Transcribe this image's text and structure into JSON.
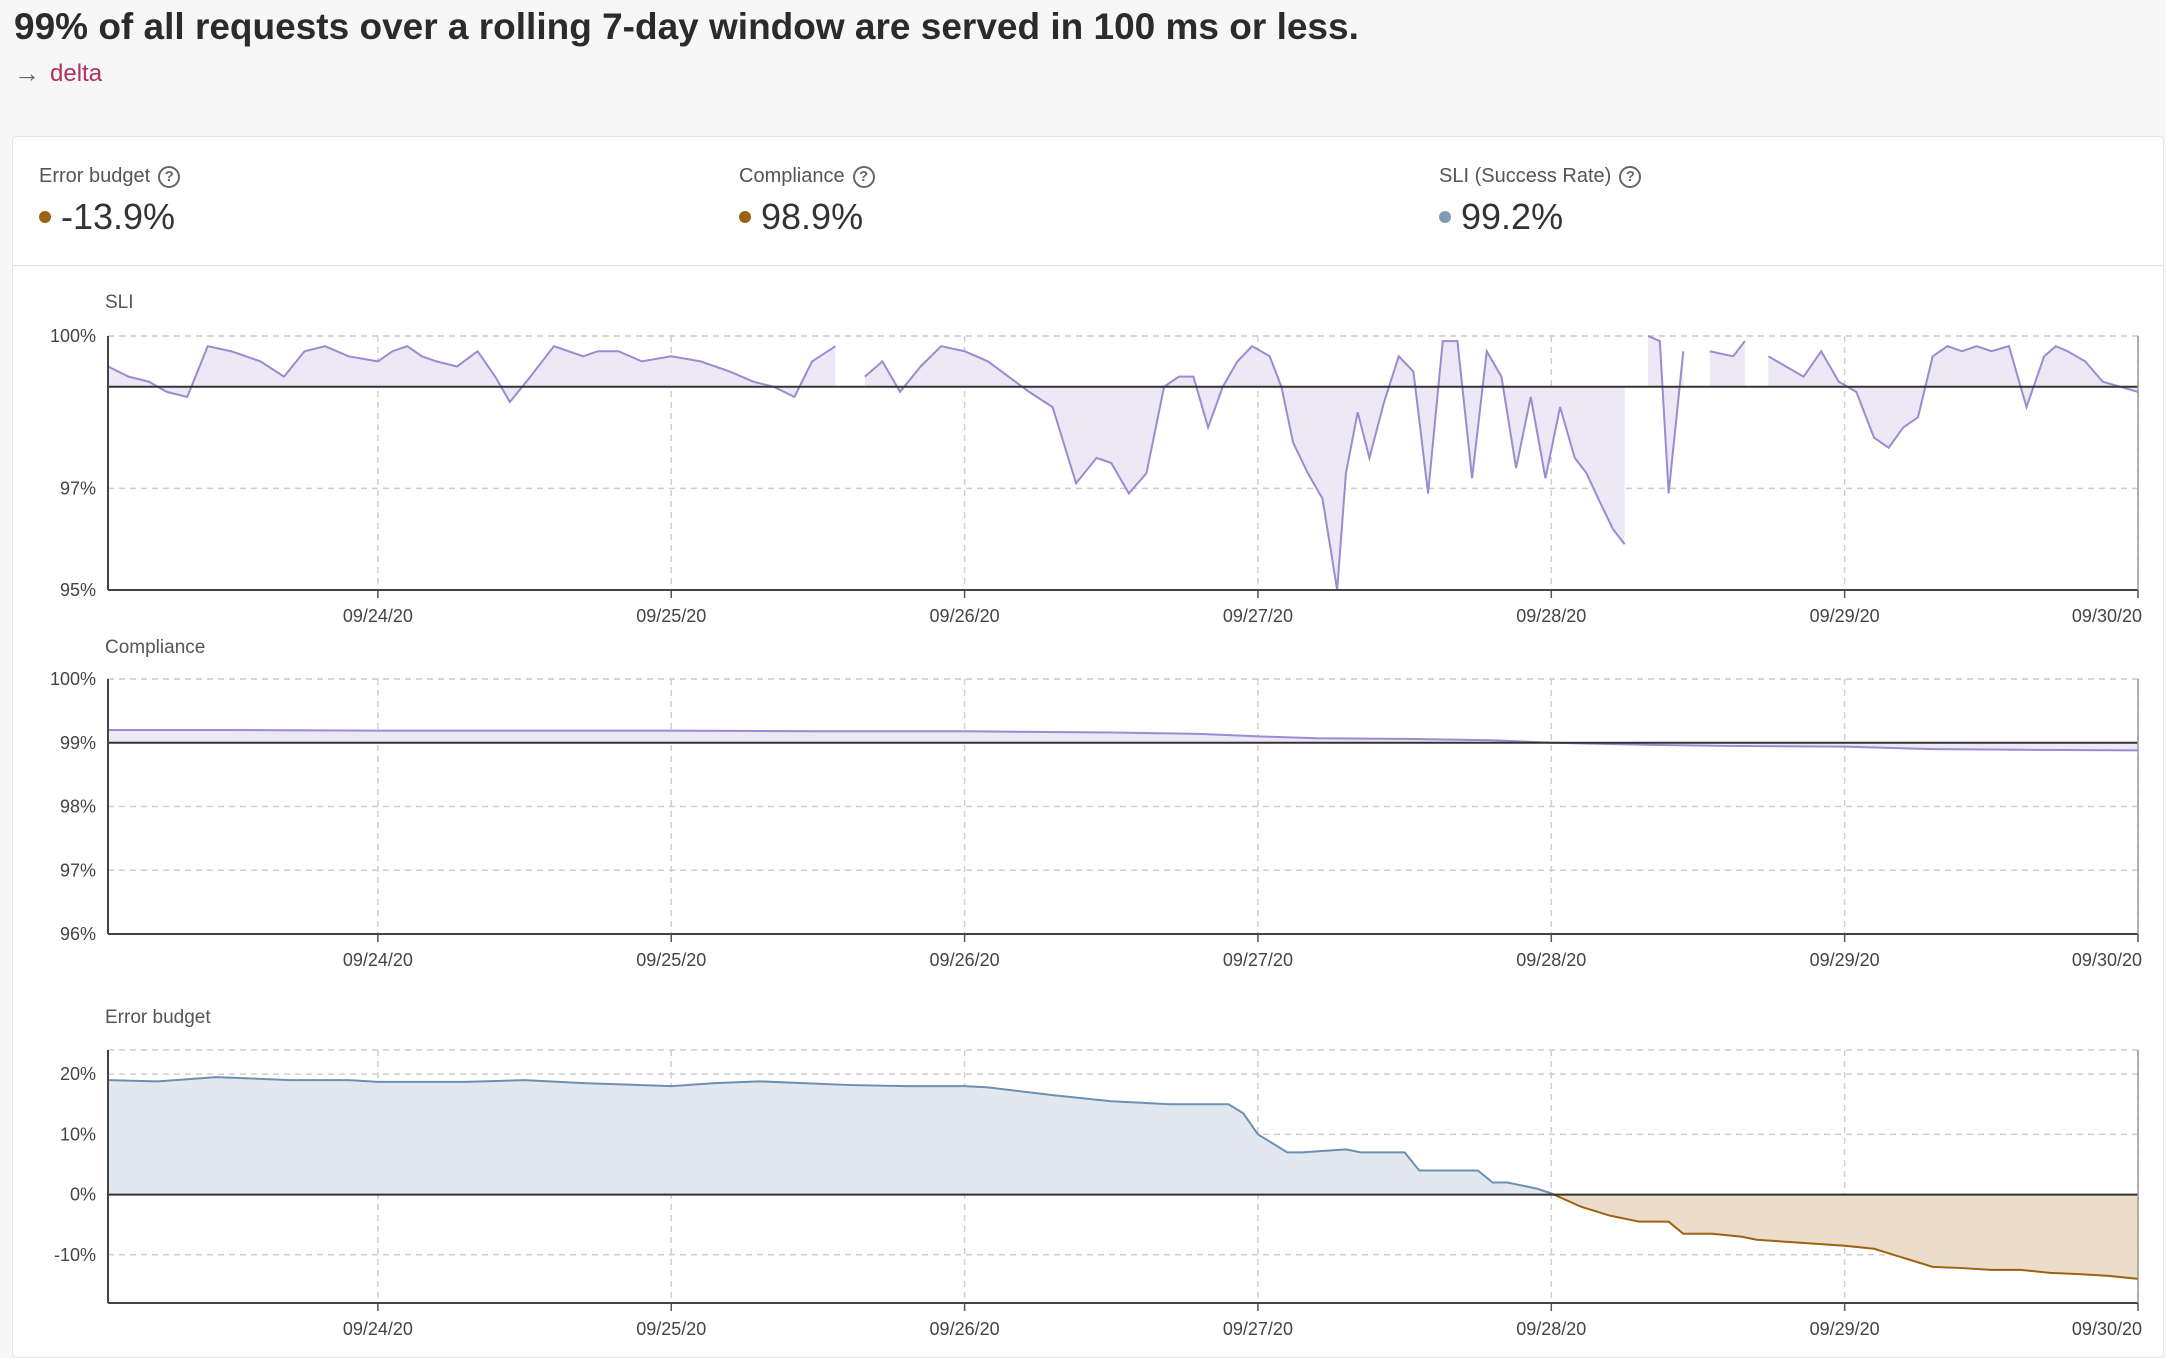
{
  "header": {
    "title": "99% of all requests over a rolling 7-day window are served in 100 ms or less.",
    "backlink_label": "delta",
    "backlink_icon": "arrow-right-icon"
  },
  "stats": [
    {
      "label": "Error budget",
      "value": "-13.9%",
      "color": "#9c6212"
    },
    {
      "label": "Compliance",
      "value": "98.9%",
      "color": "#9c6212"
    },
    {
      "label": "SLI (Success Rate)",
      "value": "99.2%",
      "color": "#7f9bb6"
    }
  ],
  "colors": {
    "sli_line": "#9b8bd0",
    "sli_fill": "#ece8f6",
    "budget_pos_line": "#6f8fb0",
    "budget_pos_fill": "#e2e8f0",
    "budget_neg_line": "#9c6212",
    "budget_neg_fill": "#ecdcca",
    "target_line": "#333333",
    "grid": "#cfcfcf"
  },
  "chart_data": [
    {
      "id": "sli",
      "type": "area",
      "title": "SLI",
      "target": 99,
      "ylim": [
        95,
        100
      ],
      "xlim": [
        -0.92,
        6
      ],
      "ytick_values": [
        95,
        97,
        100
      ],
      "yticks": [
        "95%",
        "97%",
        "100%"
      ],
      "xtick_values": [
        0,
        1,
        2,
        3,
        4,
        5,
        6
      ],
      "xticks": [
        "09/24/20",
        "09/25/20",
        "09/26/20",
        "09/27/20",
        "09/28/20",
        "09/29/20",
        "09/30/20"
      ],
      "series": [
        {
          "name": "SLI",
          "x": [
            -0.92,
            -0.85,
            -0.78,
            -0.72,
            -0.65,
            -0.58,
            -0.5,
            -0.4,
            -0.32,
            -0.25,
            -0.18,
            -0.1,
            0.0,
            0.05,
            0.1,
            0.15,
            0.2,
            0.27,
            0.34,
            0.4,
            0.45,
            0.52,
            0.6,
            0.7,
            0.75,
            0.82,
            0.9,
            1.0,
            1.1,
            1.2,
            1.28,
            1.35,
            1.42,
            1.48,
            1.56
          ],
          "y": [
            99.4,
            99.2,
            99.1,
            98.9,
            98.8,
            99.8,
            99.7,
            99.5,
            99.2,
            99.7,
            99.8,
            99.6,
            99.5,
            99.7,
            99.8,
            99.6,
            99.5,
            99.4,
            99.7,
            99.2,
            98.7,
            99.2,
            99.8,
            99.6,
            99.7,
            99.7,
            99.5,
            99.6,
            99.5,
            99.3,
            99.1,
            99.0,
            98.8,
            99.5,
            99.8
          ]
        },
        {
          "name": "SLI",
          "x": [
            1.66,
            1.72,
            1.78,
            1.85,
            1.92,
            2.0,
            2.08,
            2.15,
            2.22,
            2.3,
            2.38,
            2.45,
            2.5,
            2.56,
            2.62,
            2.68,
            2.73,
            2.78,
            2.83,
            2.88,
            2.93,
            2.98,
            3.04,
            3.08,
            3.12,
            3.17,
            3.22,
            3.27,
            3.3,
            3.34,
            3.38,
            3.43,
            3.48,
            3.53,
            3.58,
            3.63,
            3.68,
            3.73,
            3.78,
            3.83,
            3.88,
            3.93,
            3.98,
            4.03,
            4.08,
            4.12,
            4.16,
            4.21,
            4.25
          ],
          "y": [
            99.2,
            99.5,
            98.9,
            99.4,
            99.8,
            99.7,
            99.5,
            99.2,
            98.9,
            98.6,
            97.1,
            97.6,
            97.5,
            96.9,
            97.3,
            99.0,
            99.2,
            99.2,
            98.2,
            99.0,
            99.5,
            99.8,
            99.6,
            99.0,
            97.9,
            97.3,
            96.8,
            95.0,
            97.3,
            98.5,
            97.6,
            98.7,
            99.6,
            99.3,
            96.9,
            99.9,
            99.9,
            97.2,
            99.7,
            99.2,
            97.4,
            98.8,
            97.2,
            98.6,
            97.6,
            97.3,
            96.8,
            96.2,
            95.9
          ]
        },
        {
          "name": "SLI",
          "x": [
            4.33,
            4.37,
            4.4,
            4.45
          ],
          "y": [
            100,
            99.9,
            96.9,
            99.7
          ]
        },
        {
          "name": "SLI",
          "x": [
            4.54,
            4.62,
            4.66
          ],
          "y": [
            99.7,
            99.6,
            99.9
          ]
        },
        {
          "name": "SLI",
          "x": [
            4.74,
            4.8,
            4.86,
            4.92,
            4.98,
            5.04,
            5.1,
            5.15,
            5.2,
            5.25,
            5.3,
            5.35,
            5.4,
            5.45,
            5.5,
            5.56,
            5.62,
            5.68,
            5.72,
            5.76,
            5.82,
            5.88,
            5.94,
            6.0
          ],
          "y": [
            99.6,
            99.4,
            99.2,
            99.7,
            99.1,
            98.9,
            98.0,
            97.8,
            98.2,
            98.4,
            99.6,
            99.8,
            99.7,
            99.8,
            99.7,
            99.8,
            98.6,
            99.6,
            99.8,
            99.7,
            99.5,
            99.1,
            99.0,
            98.9
          ]
        }
      ]
    },
    {
      "id": "compliance",
      "type": "area",
      "title": "Compliance",
      "target": 99,
      "ylim": [
        96,
        100
      ],
      "xlim": [
        -0.92,
        6
      ],
      "ytick_values": [
        96,
        97,
        98,
        99,
        100
      ],
      "yticks": [
        "96%",
        "97%",
        "98%",
        "99%",
        "100%"
      ],
      "xtick_values": [
        0,
        1,
        2,
        3,
        4,
        5,
        6
      ],
      "xticks": [
        "09/24/20",
        "09/25/20",
        "09/26/20",
        "09/27/20",
        "09/28/20",
        "09/29/20",
        "09/30/20"
      ],
      "series": [
        {
          "name": "Compliance",
          "x": [
            -0.92,
            -0.5,
            0.0,
            0.5,
            1.0,
            1.5,
            2.0,
            2.5,
            2.8,
            3.0,
            3.2,
            3.5,
            3.8,
            4.0,
            4.3,
            4.6,
            5.0,
            5.3,
            5.6,
            6.0
          ],
          "y": [
            99.2,
            99.2,
            99.19,
            99.19,
            99.19,
            99.18,
            99.18,
            99.16,
            99.14,
            99.1,
            99.07,
            99.06,
            99.04,
            99.0,
            98.97,
            98.95,
            98.94,
            98.9,
            98.89,
            98.88
          ]
        }
      ]
    },
    {
      "id": "error_budget",
      "type": "area",
      "title": "Error budget",
      "target": 0,
      "ylim": [
        -18,
        24
      ],
      "xlim": [
        -0.92,
        6
      ],
      "ytick_values": [
        -10,
        0,
        10,
        20
      ],
      "yticks": [
        "-10%",
        "0%",
        "10%",
        "20%"
      ],
      "xtick_values": [
        0,
        1,
        2,
        3,
        4,
        5,
        6
      ],
      "xticks": [
        "09/24/20",
        "09/25/20",
        "09/26/20",
        "09/27/20",
        "09/28/20",
        "09/29/20",
        "09/30/20"
      ],
      "series": [
        {
          "name": "Error budget",
          "x": [
            -0.92,
            -0.75,
            -0.55,
            -0.4,
            -0.3,
            -0.1,
            0.0,
            0.3,
            0.5,
            0.7,
            1.0,
            1.15,
            1.3,
            1.6,
            1.8,
            2.0,
            2.08,
            2.3,
            2.5,
            2.7,
            2.9,
            2.95,
            3.0,
            3.05,
            3.1,
            3.15,
            3.3,
            3.35,
            3.5,
            3.55,
            3.75,
            3.8,
            3.85,
            3.95,
            4.0,
            4.1,
            4.2,
            4.3,
            4.4,
            4.45,
            4.55,
            4.65,
            4.7,
            4.85,
            5.0,
            5.1,
            5.2,
            5.3,
            5.4,
            5.5,
            5.6,
            5.7,
            5.8,
            5.9,
            6.0
          ],
          "y": [
            19.0,
            18.8,
            19.5,
            19.2,
            19.0,
            19.0,
            18.7,
            18.7,
            19.0,
            18.5,
            18.0,
            18.5,
            18.8,
            18.2,
            18.0,
            18.0,
            17.8,
            16.5,
            15.5,
            15.0,
            15.0,
            13.5,
            10.0,
            8.5,
            7.0,
            7.0,
            7.5,
            7.0,
            7.0,
            4.0,
            4.0,
            2.0,
            2.0,
            1.0,
            0.2,
            -2.0,
            -3.5,
            -4.5,
            -4.5,
            -6.5,
            -6.5,
            -7.0,
            -7.5,
            -8.0,
            -8.5,
            -9.0,
            -10.5,
            -12.0,
            -12.2,
            -12.5,
            -12.5,
            -13.0,
            -13.2,
            -13.5,
            -14.0
          ]
        }
      ]
    }
  ]
}
